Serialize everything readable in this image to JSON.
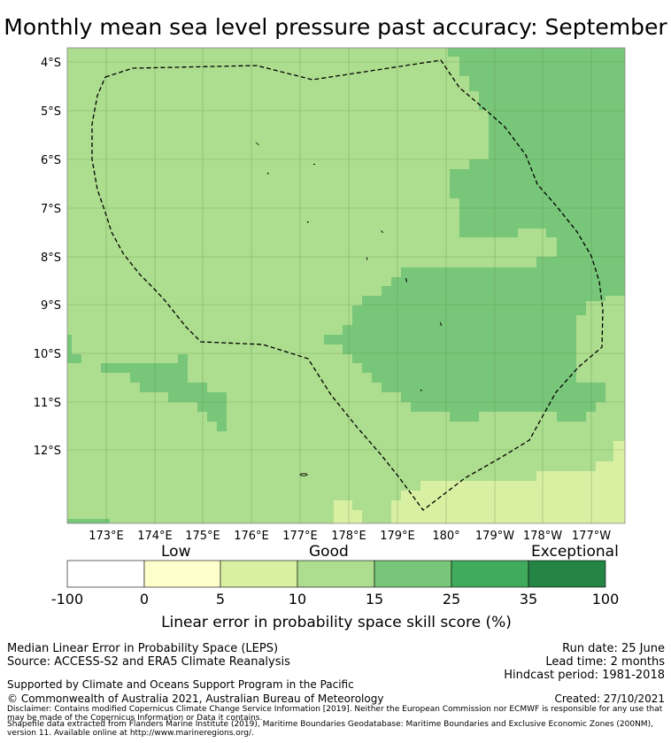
{
  "title": "Monthly mean sea level pressure past accuracy: September",
  "map": {
    "lat_labels": [
      "4°S",
      "5°S",
      "6°S",
      "7°S",
      "8°S",
      "9°S",
      "10°S",
      "11°S",
      "12°S"
    ],
    "lon_labels": [
      "173°E",
      "174°E",
      "175°E",
      "176°E",
      "177°E",
      "178°E",
      "179°E",
      "180°",
      "179°W",
      "178°W",
      "177°W"
    ],
    "colors": {
      "good": "#addd8e",
      "better": "#78c679",
      "low_good": "#d9f0a3",
      "boundary": "#000000"
    }
  },
  "legend": {
    "word_low": "Low",
    "word_good": "Good",
    "word_exceptional": "Exceptional",
    "ticks": [
      "-100",
      "0",
      "5",
      "10",
      "15",
      "25",
      "35",
      "100"
    ],
    "bin_colors": [
      "#ffffff",
      "#ffffcc",
      "#d9f0a3",
      "#addd8e",
      "#78c679",
      "#41ab5d",
      "#238443"
    ],
    "title": "Linear error in probability space skill score (%)"
  },
  "footer": {
    "method": "Median Linear Error in Probability Space (LEPS)",
    "source": "Source: ACCESS-S2 and ERA5 Climate Reanalysis",
    "run_date": "Run date: 25 June",
    "lead_time": "Lead time: 2 months",
    "hindcast": "Hindcast period: 1981-2018",
    "supported": "Supported by Climate and Oceans Support Program in the Pacific",
    "copyright": "© Commonwealth of Australia 2021, Australian Bureau of Meteorology",
    "created": "Created: 27/10/2021",
    "disclaimer": "Disclaimer: Contains modified Copernicus Climate Change Service Information [2019]. Neither the European Commission nor ECMWF is responsible for any use that may be made of the Copernicus Information or Data it contains.",
    "shapefile": "Shapefile data extracted from Flanders Marine Institute (2019), Maritime Boundaries Geodatabase: Maritime Boundaries and Exclusive Economic Zones (200NM), version 11. Available online at http://www.marineregions.org/."
  }
}
